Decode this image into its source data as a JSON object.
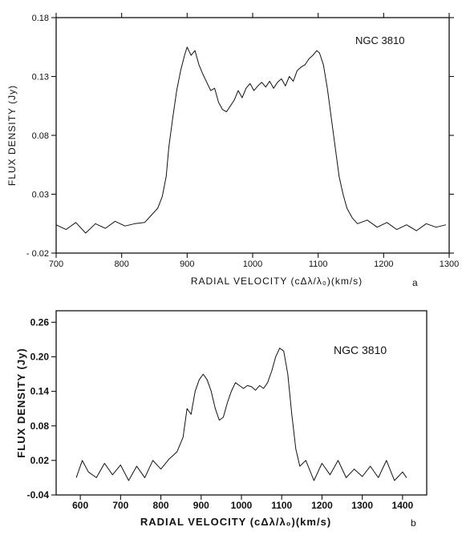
{
  "chart_data": [
    {
      "type": "line",
      "panel_label": "a",
      "title": "NGC 3810",
      "xlabel": "RADIAL VELOCITY (cΔλ/λ₀)(km/s)",
      "ylabel": "FLUX DENSITY (Jy)",
      "xlim": [
        700,
        1300
      ],
      "ylim": [
        -0.02,
        0.18
      ],
      "xticks": [
        "700",
        "800",
        "900",
        "1000",
        "1100",
        "1200",
        "1300"
      ],
      "yticks": [
        "- 0.02",
        "0.03",
        "0.08",
        "0.13",
        "0.18"
      ],
      "grid": false,
      "series": [
        {
          "x": [
            700,
            715,
            730,
            745,
            760,
            775,
            790,
            805,
            820,
            835,
            845,
            855,
            862,
            868,
            872,
            878,
            884,
            890,
            896,
            900,
            906,
            912,
            918,
            924,
            930,
            936,
            942,
            948,
            954,
            960,
            966,
            972,
            978,
            984,
            990,
            996,
            1002,
            1008,
            1014,
            1020,
            1026,
            1032,
            1038,
            1044,
            1050,
            1056,
            1062,
            1068,
            1074,
            1080,
            1086,
            1092,
            1098,
            1102,
            1108,
            1114,
            1120,
            1126,
            1132,
            1138,
            1144,
            1152,
            1160,
            1175,
            1190,
            1205,
            1220,
            1235,
            1250,
            1265,
            1280,
            1295
          ],
          "y": [
            0.004,
            0.0,
            0.006,
            -0.003,
            0.005,
            0.001,
            0.007,
            0.003,
            0.005,
            0.006,
            0.012,
            0.018,
            0.028,
            0.045,
            0.07,
            0.095,
            0.118,
            0.135,
            0.148,
            0.155,
            0.148,
            0.152,
            0.14,
            0.132,
            0.125,
            0.118,
            0.12,
            0.108,
            0.102,
            0.1,
            0.105,
            0.11,
            0.118,
            0.112,
            0.12,
            0.124,
            0.118,
            0.122,
            0.125,
            0.121,
            0.126,
            0.12,
            0.125,
            0.128,
            0.122,
            0.13,
            0.126,
            0.135,
            0.138,
            0.14,
            0.145,
            0.148,
            0.152,
            0.15,
            0.14,
            0.12,
            0.095,
            0.07,
            0.045,
            0.03,
            0.018,
            0.01,
            0.005,
            0.008,
            0.002,
            0.006,
            0.0,
            0.004,
            -0.001,
            0.005,
            0.002,
            0.004
          ]
        }
      ]
    },
    {
      "type": "line",
      "panel_label": "b",
      "title": "NGC 3810",
      "xlabel": "RADIAL VELOCITY (cΔλ/λ₀)(km/s)",
      "ylabel": "FLUX DENSITY (Jy)",
      "xlim": [
        540,
        1460
      ],
      "ylim": [
        -0.04,
        0.28
      ],
      "xticks": [
        "600",
        "700",
        "800",
        "900",
        "1000",
        "1100",
        "1200",
        "1300",
        "1400"
      ],
      "yticks": [
        "-0.04",
        "0.02",
        "0.08",
        "0.14",
        "0.20",
        "0.26"
      ],
      "grid": false,
      "series": [
        {
          "x": [
            590,
            605,
            620,
            640,
            660,
            680,
            700,
            720,
            740,
            760,
            780,
            800,
            820,
            840,
            855,
            865,
            875,
            885,
            895,
            905,
            915,
            925,
            935,
            945,
            955,
            965,
            975,
            985,
            995,
            1005,
            1015,
            1025,
            1035,
            1045,
            1055,
            1065,
            1075,
            1085,
            1095,
            1105,
            1115,
            1125,
            1135,
            1145,
            1160,
            1180,
            1200,
            1220,
            1240,
            1260,
            1280,
            1300,
            1320,
            1340,
            1360,
            1380,
            1400,
            1410
          ],
          "y": [
            -0.01,
            0.02,
            0.0,
            -0.01,
            0.015,
            -0.005,
            0.012,
            -0.015,
            0.01,
            -0.01,
            0.02,
            0.005,
            0.022,
            0.035,
            0.06,
            0.11,
            0.1,
            0.14,
            0.16,
            0.17,
            0.16,
            0.14,
            0.11,
            0.09,
            0.095,
            0.12,
            0.14,
            0.155,
            0.15,
            0.145,
            0.15,
            0.148,
            0.142,
            0.15,
            0.145,
            0.155,
            0.175,
            0.2,
            0.215,
            0.21,
            0.17,
            0.1,
            0.04,
            0.01,
            0.02,
            -0.015,
            0.015,
            -0.005,
            0.02,
            -0.01,
            0.005,
            -0.008,
            0.01,
            -0.01,
            0.02,
            -0.015,
            0.0,
            -0.01
          ]
        }
      ]
    }
  ]
}
